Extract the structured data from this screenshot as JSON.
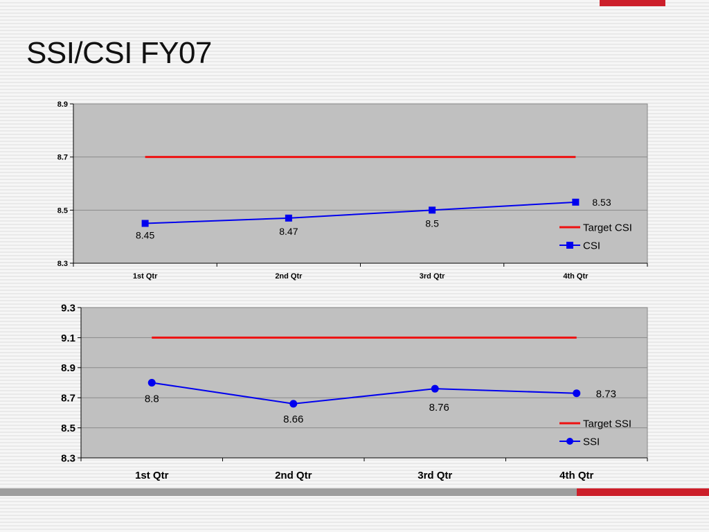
{
  "slide": {
    "title": "SSI/CSI FY07",
    "accent_color": "#cc1f2a"
  },
  "chart_data": [
    {
      "type": "line",
      "categories": [
        "1st Qtr",
        "2nd Qtr",
        "3rd Qtr",
        "4th Qtr"
      ],
      "series": [
        {
          "name": "Target CSI",
          "values": [
            8.7,
            8.7,
            8.7,
            8.7
          ],
          "color": "#ee1111",
          "marker": "none",
          "data_labels": false
        },
        {
          "name": "CSI",
          "values": [
            8.45,
            8.47,
            8.5,
            8.53
          ],
          "color": "#0000ee",
          "marker": "square",
          "data_labels": true
        }
      ],
      "ylim": [
        8.3,
        8.9
      ],
      "yticks": [
        8.3,
        8.5,
        8.7,
        8.9
      ],
      "ytick_labels": [
        "8.3",
        "8.5",
        "8.7",
        "8.9"
      ],
      "grid": true,
      "legend_position": "right",
      "plot_background": "#c0c0c0"
    },
    {
      "type": "line",
      "categories": [
        "1st Qtr",
        "2nd Qtr",
        "3rd Qtr",
        "4th Qtr"
      ],
      "series": [
        {
          "name": "Target SSI",
          "values": [
            9.1,
            9.1,
            9.1,
            9.1
          ],
          "color": "#ee1111",
          "marker": "none",
          "data_labels": false
        },
        {
          "name": "SSI",
          "values": [
            8.8,
            8.66,
            8.76,
            8.73
          ],
          "color": "#0000ee",
          "marker": "circle",
          "data_labels": true
        }
      ],
      "ylim": [
        8.3,
        9.3
      ],
      "yticks": [
        8.3,
        8.5,
        8.7,
        8.9,
        9.1,
        9.3
      ],
      "ytick_labels": [
        "8.3",
        "8.5",
        "8.7",
        "8.9",
        "9.1",
        "9.3"
      ],
      "grid": true,
      "legend_position": "right",
      "plot_background": "#c0c0c0"
    }
  ]
}
